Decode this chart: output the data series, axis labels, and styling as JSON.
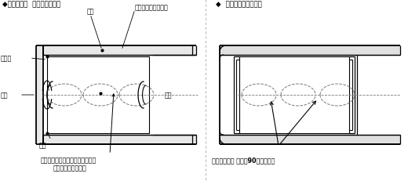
{
  "bg_color": "#ffffff",
  "line_color": "#000000",
  "dashed_color": "#777777",
  "fig_width": 5.2,
  "fig_height": 2.32,
  "dpi": 100,
  "left_title": "◆新开发品（  扛矩转换器用）",
  "right_title": "◆  现行品（变速筱用）",
  "label_dianzi_top": "尾子",
  "label_gunzi": "滚子（特殊热处理）",
  "label_baochijia": "保持架",
  "label_waijing": "外径",
  "label_neijing": "内径",
  "label_dianzi_bot": "尾子",
  "left_cap1": "保持架内径、外径采用密封弧形，",
  "left_cap2": "增强了保持架的强度",
  "right_cap": "保持架内径， 外径成90度弯曲形状"
}
